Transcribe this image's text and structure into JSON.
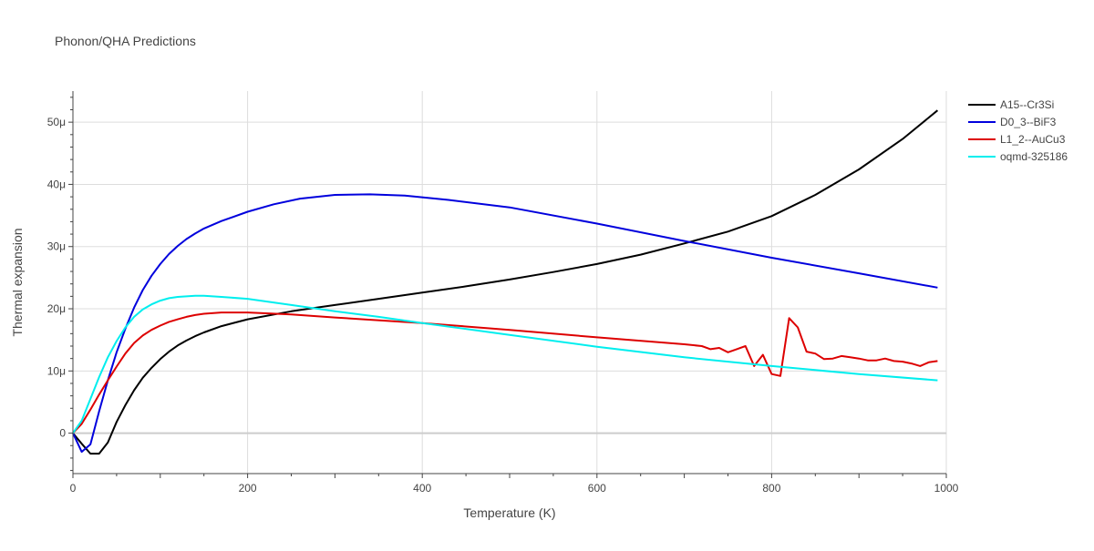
{
  "chart_data": {
    "type": "line",
    "title": "Phonon/QHA Predictions",
    "xlabel": "Temperature (K)",
    "ylabel": "Thermal expansion",
    "xlim": [
      0,
      1000
    ],
    "ylim": [
      -6.5,
      55
    ],
    "xticks": [
      0,
      200,
      400,
      600,
      800,
      1000
    ],
    "xtick_labels": [
      "0",
      "200",
      "400",
      "600",
      "800",
      "1000"
    ],
    "yticks": [
      0,
      10,
      20,
      30,
      40,
      50
    ],
    "ytick_labels": [
      "0",
      "10μ",
      "20μ",
      "30μ",
      "40μ",
      "50μ"
    ],
    "grid": true,
    "legend_position": "top-right",
    "series": [
      {
        "name": "A15--Cr3Si",
        "color": "#000000",
        "x": [
          0,
          10,
          20,
          30,
          40,
          50,
          60,
          70,
          80,
          90,
          100,
          110,
          120,
          130,
          140,
          150,
          170,
          200,
          250,
          300,
          350,
          400,
          450,
          500,
          550,
          600,
          650,
          700,
          750,
          800,
          850,
          900,
          950,
          990
        ],
        "y": [
          0,
          -1.7,
          -3.3,
          -3.3,
          -1.5,
          1.8,
          4.5,
          6.9,
          8.9,
          10.5,
          11.9,
          13.1,
          14.1,
          14.9,
          15.6,
          16.2,
          17.2,
          18.3,
          19.6,
          20.6,
          21.6,
          22.6,
          23.6,
          24.7,
          25.9,
          27.2,
          28.7,
          30.5,
          32.4,
          34.9,
          38.3,
          42.4,
          47.3,
          51.9
        ]
      },
      {
        "name": "D0_3--BiF3",
        "color": "#0000dd",
        "x": [
          0,
          10,
          20,
          30,
          40,
          50,
          60,
          70,
          80,
          90,
          100,
          110,
          120,
          130,
          140,
          150,
          170,
          200,
          230,
          260,
          300,
          340,
          380,
          430,
          500,
          600,
          700,
          800,
          900,
          990
        ],
        "y": [
          0,
          -3.0,
          -1.8,
          3.5,
          8.5,
          13.0,
          16.8,
          20.2,
          23.0,
          25.3,
          27.2,
          28.8,
          30.1,
          31.2,
          32.1,
          32.9,
          34.1,
          35.6,
          36.8,
          37.7,
          38.3,
          38.4,
          38.2,
          37.5,
          36.3,
          33.7,
          30.9,
          28.2,
          25.7,
          23.4
        ]
      },
      {
        "name": "L1_2--AuCu3",
        "color": "#dd0000",
        "x": [
          0,
          10,
          20,
          30,
          40,
          50,
          60,
          70,
          80,
          90,
          100,
          110,
          120,
          130,
          140,
          150,
          170,
          200,
          250,
          300,
          400,
          500,
          600,
          700,
          720,
          730,
          740,
          750,
          760,
          770,
          780,
          790,
          800,
          810,
          820,
          830,
          840,
          850,
          860,
          870,
          880,
          890,
          900,
          910,
          920,
          930,
          940,
          950,
          960,
          970,
          980,
          990
        ],
        "y": [
          0,
          1.5,
          3.8,
          6.2,
          8.5,
          10.7,
          12.8,
          14.5,
          15.7,
          16.6,
          17.3,
          17.9,
          18.3,
          18.7,
          19.0,
          19.2,
          19.4,
          19.4,
          19.1,
          18.6,
          17.7,
          16.6,
          15.4,
          14.3,
          14.0,
          13.5,
          13.7,
          13.0,
          13.5,
          14.0,
          10.8,
          12.6,
          9.5,
          9.2,
          18.5,
          17.0,
          13.1,
          12.8,
          11.9,
          12.0,
          12.4,
          12.2,
          12.0,
          11.7,
          11.7,
          12.0,
          11.6,
          11.5,
          11.2,
          10.8,
          11.4,
          11.6
        ]
      },
      {
        "name": "oqmd-325186",
        "color": "#00eeee",
        "x": [
          0,
          10,
          20,
          30,
          40,
          50,
          60,
          70,
          80,
          90,
          100,
          110,
          120,
          130,
          140,
          150,
          170,
          200,
          250,
          300,
          350,
          400,
          500,
          600,
          700,
          800,
          900,
          990
        ],
        "y": [
          0,
          2.0,
          5.5,
          9.0,
          12.2,
          14.8,
          17.0,
          18.7,
          19.9,
          20.7,
          21.3,
          21.7,
          21.9,
          22.0,
          22.1,
          22.1,
          21.9,
          21.6,
          20.6,
          19.6,
          18.7,
          17.7,
          15.8,
          13.9,
          12.2,
          10.8,
          9.5,
          8.5
        ]
      }
    ]
  }
}
